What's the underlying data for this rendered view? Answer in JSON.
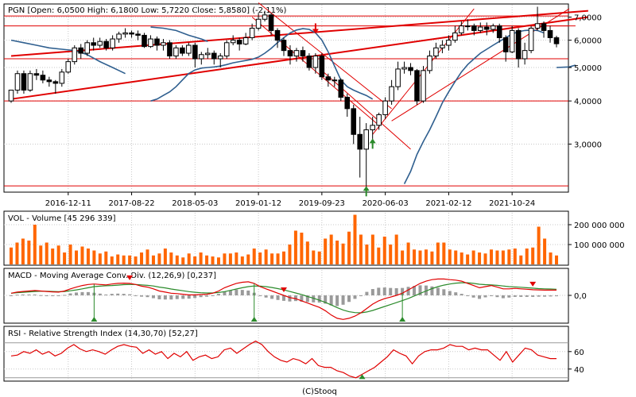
{
  "colors": {
    "up": "#000000",
    "down": "#000000",
    "trend": "#e00000",
    "ma": "#2f5f8f",
    "volume": "#ff6600",
    "macd_line": "#e00000",
    "signal_line": "#2a8a2a",
    "histogram": "#9a9a9a",
    "rsi": "#e00000",
    "grid": "#c8c8c8",
    "frame": "#000000"
  },
  "footer": "(C)Stooq",
  "chart_data": [
    {
      "type": "candlestick",
      "title": "PGN [Open: 6,0500  High: 6,1800  Low: 5,7220  Close: 5,8580] (-2,11%)",
      "scale": "log",
      "ylim": [
        2.2,
        7.6
      ],
      "y_ticks": [
        {
          "v": 7.0,
          "label": "7,0000"
        },
        {
          "v": 6.0,
          "label": "6,0000"
        },
        {
          "v": 5.0,
          "label": "5,0000"
        },
        {
          "v": 4.0,
          "label": "4,0000"
        },
        {
          "v": 3.0,
          "label": "3,0000"
        }
      ],
      "x_ticks": [
        {
          "i": 9,
          "label": "2016-12-11"
        },
        {
          "i": 19,
          "label": "2017-08-22"
        },
        {
          "i": 29,
          "label": "2018-05-03"
        },
        {
          "i": 39,
          "label": "2019-01-12"
        },
        {
          "i": 49,
          "label": "2019-09-23"
        },
        {
          "i": 59,
          "label": "2020-06-03"
        },
        {
          "i": 69,
          "label": "2021-02-12"
        },
        {
          "i": 79,
          "label": "2021-10-24"
        }
      ],
      "candles": [
        [
          4.0,
          4.3,
          4.3,
          3.95
        ],
        [
          4.3,
          4.8,
          4.9,
          4.2
        ],
        [
          4.8,
          4.3,
          4.9,
          4.2
        ],
        [
          4.3,
          4.8,
          4.9,
          4.25
        ],
        [
          4.8,
          4.75,
          4.95,
          4.6
        ],
        [
          4.75,
          4.6,
          4.9,
          4.5
        ],
        [
          4.6,
          4.55,
          4.7,
          4.4
        ],
        [
          4.55,
          4.5,
          4.6,
          4.2
        ],
        [
          4.5,
          4.85,
          4.95,
          4.4
        ],
        [
          4.85,
          5.2,
          5.3,
          4.8
        ],
        [
          5.2,
          5.7,
          5.8,
          5.1
        ],
        [
          5.7,
          5.5,
          5.85,
          5.3
        ],
        [
          5.5,
          5.9,
          6.0,
          5.4
        ],
        [
          5.9,
          5.8,
          6.1,
          5.6
        ],
        [
          5.8,
          5.95,
          6.1,
          5.7
        ],
        [
          5.95,
          5.7,
          6.05,
          5.6
        ],
        [
          5.7,
          6.05,
          6.2,
          5.6
        ],
        [
          6.05,
          6.25,
          6.35,
          5.9
        ],
        [
          6.25,
          6.3,
          6.5,
          6.1
        ],
        [
          6.3,
          6.25,
          6.4,
          6.1
        ],
        [
          6.25,
          6.2,
          6.4,
          6.0
        ],
        [
          6.2,
          5.75,
          6.3,
          5.7
        ],
        [
          5.75,
          6.05,
          6.2,
          5.7
        ],
        [
          6.05,
          5.8,
          6.15,
          5.6
        ],
        [
          5.8,
          5.9,
          6.05,
          5.6
        ],
        [
          5.9,
          5.4,
          6.0,
          5.3
        ],
        [
          5.4,
          5.7,
          5.8,
          5.3
        ],
        [
          5.7,
          5.5,
          5.8,
          5.4
        ],
        [
          5.5,
          5.8,
          5.9,
          5.4
        ],
        [
          5.8,
          5.3,
          5.9,
          5.0
        ],
        [
          5.3,
          5.45,
          5.55,
          5.1
        ],
        [
          5.45,
          5.5,
          5.7,
          5.3
        ],
        [
          5.5,
          5.3,
          5.6,
          5.1
        ],
        [
          5.3,
          5.4,
          5.5,
          5.0
        ],
        [
          5.4,
          5.9,
          6.0,
          5.3
        ],
        [
          5.9,
          6.0,
          6.2,
          5.8
        ],
        [
          6.0,
          5.85,
          6.1,
          5.6
        ],
        [
          5.85,
          6.1,
          6.3,
          5.8
        ],
        [
          6.1,
          6.5,
          6.7,
          6.0
        ],
        [
          6.5,
          6.9,
          7.2,
          6.4
        ],
        [
          6.9,
          7.1,
          7.3,
          6.8
        ],
        [
          7.1,
          6.4,
          7.2,
          6.2
        ],
        [
          6.4,
          6.0,
          6.5,
          5.7
        ],
        [
          6.0,
          5.6,
          6.1,
          5.4
        ],
        [
          5.6,
          5.4,
          5.8,
          5.1
        ],
        [
          5.4,
          5.6,
          5.7,
          5.2
        ],
        [
          5.6,
          5.4,
          5.75,
          5.2
        ],
        [
          5.4,
          5.0,
          5.5,
          4.9
        ],
        [
          5.0,
          5.4,
          5.5,
          4.8
        ],
        [
          5.4,
          4.7,
          5.5,
          4.6
        ],
        [
          4.7,
          4.6,
          4.8,
          4.4
        ],
        [
          4.6,
          4.6,
          4.7,
          4.4
        ],
        [
          4.6,
          4.1,
          4.65,
          4.0
        ],
        [
          4.1,
          3.8,
          4.2,
          3.6
        ],
        [
          3.8,
          3.2,
          3.9,
          3.0
        ],
        [
          3.2,
          2.9,
          3.6,
          2.4
        ],
        [
          2.9,
          3.3,
          3.45,
          2.2
        ],
        [
          3.3,
          3.4,
          3.6,
          3.1
        ],
        [
          3.4,
          3.65,
          3.7,
          3.3
        ],
        [
          3.65,
          4.0,
          4.1,
          3.55
        ],
        [
          4.0,
          4.4,
          4.6,
          3.9
        ],
        [
          4.4,
          4.95,
          5.2,
          4.3
        ],
        [
          4.95,
          5.0,
          5.2,
          4.8
        ],
        [
          5.0,
          4.9,
          5.15,
          4.75
        ],
        [
          4.9,
          4.0,
          4.95,
          3.9
        ],
        [
          4.0,
          4.9,
          5.05,
          3.95
        ],
        [
          4.9,
          5.4,
          5.6,
          4.8
        ],
        [
          5.4,
          5.7,
          5.9,
          5.3
        ],
        [
          5.7,
          5.8,
          6.0,
          5.5
        ],
        [
          5.8,
          6.0,
          6.2,
          5.6
        ],
        [
          6.0,
          6.3,
          6.6,
          5.9
        ],
        [
          6.3,
          6.6,
          6.8,
          6.2
        ],
        [
          6.6,
          6.6,
          6.9,
          6.4
        ],
        [
          6.6,
          6.4,
          6.7,
          6.2
        ],
        [
          6.4,
          6.55,
          6.75,
          6.3
        ],
        [
          6.55,
          6.45,
          6.75,
          6.2
        ],
        [
          6.45,
          6.6,
          6.7,
          6.3
        ],
        [
          6.6,
          6.1,
          6.7,
          5.9
        ],
        [
          6.1,
          5.55,
          6.2,
          5.2
        ],
        [
          5.55,
          6.4,
          6.6,
          5.5
        ],
        [
          6.4,
          5.3,
          6.5,
          5.0
        ],
        [
          5.3,
          5.6,
          5.9,
          5.1
        ],
        [
          5.6,
          6.5,
          6.6,
          5.5
        ],
        [
          6.5,
          6.7,
          7.5,
          6.4
        ],
        [
          6.7,
          6.4,
          6.8,
          6.1
        ],
        [
          6.4,
          6.1,
          6.6,
          5.9
        ],
        [
          6.1,
          5.86,
          6.18,
          5.72
        ]
      ],
      "ma": [
        null,
        null,
        null,
        null,
        null,
        null,
        null,
        null,
        null,
        null,
        null,
        null,
        null,
        null,
        null,
        null,
        null,
        null,
        null,
        null,
        null,
        null,
        4.0,
        4.05,
        4.15,
        4.25,
        4.4,
        4.6,
        4.8,
        4.92,
        4.98,
        5.0,
        5.02,
        5.05,
        5.1,
        5.16,
        5.2,
        5.24,
        5.28,
        5.36,
        5.5,
        5.68,
        5.9,
        6.1,
        6.3,
        6.42,
        6.48,
        6.45,
        6.3,
        6.0,
        5.55,
        5.05,
        4.6,
        4.4,
        4.3,
        4.22,
        4.15,
        4.05,
        null,
        null,
        null,
        null,
        2.3,
        2.5,
        2.8,
        3.05,
        3.3,
        3.6,
        3.95,
        4.25,
        4.55,
        4.85,
        5.1,
        5.3,
        5.5,
        5.65,
        5.8,
        5.95,
        6.1,
        6.25,
        6.35,
        6.4,
        6.42,
        6.4,
        6.3,
        null,
        null,
        null
      ],
      "ma2": [
        [
          0,
          6.0
        ],
        [
          2,
          5.9
        ],
        [
          4,
          5.8
        ],
        [
          6,
          5.7
        ],
        [
          8,
          5.65
        ],
        [
          10,
          5.6
        ],
        [
          12,
          5.45
        ],
        [
          14,
          5.2
        ],
        [
          16,
          5.0
        ],
        [
          17,
          4.9
        ],
        [
          18,
          4.8
        ]
      ],
      "ma3": [
        [
          22,
          6.55
        ],
        [
          24,
          6.5
        ],
        [
          26,
          6.4
        ],
        [
          28,
          6.2
        ],
        [
          30,
          6.05
        ],
        [
          31,
          5.95
        ]
      ],
      "ma4": [
        [
          86,
          5.0
        ],
        [
          88,
          5.02
        ],
        [
          89,
          5.08
        ]
      ],
      "hlines": [
        7.05,
        6.6,
        5.3,
        4.0,
        2.27
      ],
      "trendlines": [
        [
          [
            0,
            5.4
          ],
          [
            91,
            7.3
          ]
        ],
        [
          [
            0,
            4.05
          ],
          [
            91,
            7.0
          ]
        ],
        [
          [
            39,
            7.7
          ],
          [
            60,
            3.8
          ]
        ],
        [
          [
            38,
            7.0
          ],
          [
            58,
            3.4
          ]
        ],
        [
          [
            49,
            4.9
          ],
          [
            63,
            2.9
          ]
        ],
        [
          [
            57,
            3.2
          ],
          [
            73,
            7.4
          ]
        ],
        [
          [
            60,
            3.5
          ],
          [
            88,
            7.4
          ]
        ],
        [
          [
            70,
            6.6
          ],
          [
            89,
            6.6
          ]
        ]
      ],
      "markers": [
        {
          "i": 48,
          "v": 6.4,
          "kind": "down",
          "color": "#e00000"
        },
        {
          "i": 57,
          "v": 3.05,
          "kind": "up",
          "color": "#2a8a2a"
        },
        {
          "i": 56,
          "v": 2.22,
          "kind": "up",
          "color": "#2a8a2a"
        }
      ]
    },
    {
      "type": "bar",
      "title": "VOL - Volume [45 296 339]",
      "ylim": [
        0,
        260000000
      ],
      "y_ticks": [
        {
          "v": 100000000,
          "label": "100 000 000"
        },
        {
          "v": 200000000,
          "label": "200 000 000"
        }
      ],
      "values": [
        85,
        110,
        130,
        120,
        200,
        95,
        110,
        80,
        95,
        60,
        100,
        70,
        90,
        80,
        70,
        55,
        65,
        40,
        50,
        45,
        45,
        40,
        60,
        75,
        45,
        55,
        80,
        60,
        45,
        35,
        55,
        40,
        60,
        45,
        40,
        35,
        55,
        55,
        60,
        40,
        50,
        80,
        60,
        75,
        55,
        55,
        65,
        100,
        170,
        160,
        115,
        70,
        65,
        130,
        150,
        120,
        105,
        165,
        250,
        150,
        100,
        150,
        85,
        140,
        100,
        150,
        70,
        110,
        75,
        70,
        75,
        65,
        110,
        110,
        75,
        70,
        60,
        50,
        70,
        60,
        55,
        75,
        70,
        70,
        75,
        80,
        45,
        80,
        85,
        190,
        130,
        60,
        45
      ],
      "value_scale": 1000000
    },
    {
      "type": "line",
      "title": "MACD - Moving Average Conv. Div. (12,26,9) [0,237]",
      "ylim": [
        -1.2,
        0.8
      ],
      "y_ticks": [
        {
          "v": 0,
          "label": "0,0"
        }
      ],
      "macd": [
        0.1,
        0.15,
        0.18,
        0.2,
        0.22,
        0.2,
        0.18,
        0.16,
        0.15,
        0.2,
        0.3,
        0.38,
        0.45,
        0.5,
        0.52,
        0.5,
        0.48,
        0.52,
        0.55,
        0.56,
        0.55,
        0.5,
        0.42,
        0.38,
        0.3,
        0.2,
        0.15,
        0.1,
        0.08,
        0.05,
        0.02,
        0.02,
        0.04,
        0.05,
        0.1,
        0.2,
        0.35,
        0.45,
        0.55,
        0.6,
        0.62,
        0.55,
        0.4,
        0.3,
        0.2,
        0.1,
        0.0,
        -0.1,
        -0.15,
        -0.25,
        -0.35,
        -0.45,
        -0.55,
        -0.7,
        -0.9,
        -1.05,
        -1.1,
        -1.05,
        -0.95,
        -0.8,
        -0.6,
        -0.4,
        -0.25,
        -0.15,
        -0.08,
        0.0,
        0.1,
        0.25,
        0.4,
        0.55,
        0.65,
        0.72,
        0.75,
        0.75,
        0.72,
        0.7,
        0.65,
        0.55,
        0.45,
        0.35,
        0.4,
        0.45,
        0.38,
        0.3,
        0.3,
        0.32,
        0.3,
        0.28,
        0.26,
        0.25,
        0.24,
        0.24,
        0.24
      ],
      "signal": [
        0.1,
        0.12,
        0.14,
        0.16,
        0.18,
        0.19,
        0.19,
        0.18,
        0.17,
        0.18,
        0.21,
        0.25,
        0.3,
        0.35,
        0.4,
        0.42,
        0.44,
        0.45,
        0.47,
        0.49,
        0.5,
        0.5,
        0.48,
        0.46,
        0.43,
        0.38,
        0.34,
        0.29,
        0.25,
        0.21,
        0.17,
        0.14,
        0.12,
        0.11,
        0.11,
        0.13,
        0.17,
        0.23,
        0.29,
        0.35,
        0.4,
        0.43,
        0.42,
        0.4,
        0.36,
        0.31,
        0.25,
        0.18,
        0.11,
        0.04,
        -0.05,
        -0.13,
        -0.22,
        -0.32,
        -0.44,
        -0.56,
        -0.67,
        -0.75,
        -0.79,
        -0.8,
        -0.76,
        -0.69,
        -0.6,
        -0.51,
        -0.42,
        -0.33,
        -0.24,
        -0.14,
        -0.03,
        0.09,
        0.2,
        0.31,
        0.4,
        0.47,
        0.52,
        0.56,
        0.58,
        0.58,
        0.55,
        0.51,
        0.49,
        0.48,
        0.46,
        0.43,
        0.4,
        0.39,
        0.37,
        0.35,
        0.33,
        0.31,
        0.3,
        0.29,
        0.28
      ],
      "signals": [
        {
          "i": 20,
          "kind": "down"
        },
        {
          "i": 46,
          "kind": "down"
        },
        {
          "i": 88,
          "kind": "down"
        },
        {
          "i": 14,
          "kind": "up"
        },
        {
          "i": 41,
          "kind": "up"
        },
        {
          "i": 66,
          "kind": "up"
        }
      ]
    },
    {
      "type": "line",
      "title": "RSI - Relative Strength Index (14,30,70) [52,27]",
      "ylim": [
        28,
        78
      ],
      "y_ticks": [
        {
          "v": 60,
          "label": "60"
        },
        {
          "v": 40,
          "label": "40"
        }
      ],
      "guides": [
        70,
        30
      ],
      "values": [
        55,
        56,
        60,
        58,
        62,
        57,
        60,
        55,
        58,
        64,
        68,
        63,
        60,
        62,
        60,
        57,
        62,
        66,
        68,
        66,
        65,
        58,
        62,
        57,
        60,
        52,
        58,
        54,
        60,
        50,
        54,
        56,
        52,
        54,
        62,
        64,
        58,
        63,
        68,
        72,
        68,
        60,
        54,
        50,
        48,
        52,
        50,
        46,
        52,
        44,
        42,
        42,
        38,
        36,
        32,
        30,
        34,
        38,
        42,
        48,
        54,
        62,
        58,
        55,
        46,
        55,
        60,
        62,
        62,
        64,
        68,
        66,
        66,
        62,
        64,
        62,
        62,
        56,
        50,
        60,
        48,
        56,
        64,
        62,
        56,
        54,
        52,
        52
      ],
      "markers": [
        {
          "i": 56,
          "kind": "up"
        }
      ]
    }
  ]
}
